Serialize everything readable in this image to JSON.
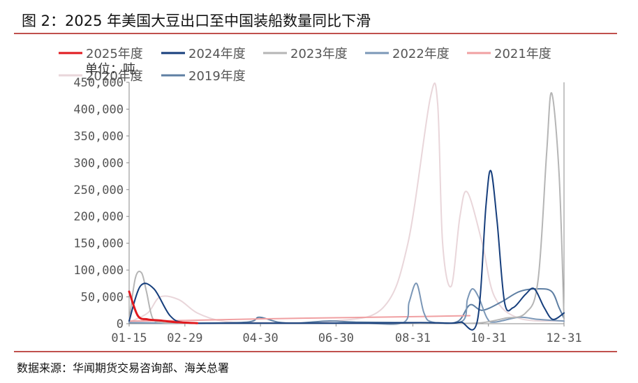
{
  "figure": {
    "title": "图 2：2025 年美国大豆出口至中国装船数量同比下滑",
    "source": "数据来源：华闻期货交易咨询部、海关总署"
  },
  "chart_data": {
    "type": "line",
    "unit_label": "单位：吨",
    "x_tick_labels": [
      "01-15",
      "02-29",
      "04-30",
      "06-30",
      "08-31",
      "10-31",
      "12-31"
    ],
    "x_ticks_day_of_year": [
      15,
      60,
      121,
      182,
      244,
      305,
      366
    ],
    "y_tick_labels": [
      "0",
      "50,000",
      "100,000",
      "150,000",
      "200,000",
      "250,000",
      "300,000",
      "350,000",
      "400,000",
      "450,000"
    ],
    "ylim": [
      0,
      450000
    ],
    "xlim_day_of_year": [
      15,
      366
    ],
    "grid": false,
    "legend_position": "top-left",
    "series": [
      {
        "name": "2025年度",
        "color": "#e0191e",
        "width": 3,
        "x": [
          15,
          22,
          30,
          40,
          52,
          70
        ],
        "y": [
          60000,
          15000,
          8000,
          6000,
          3000,
          1000
        ]
      },
      {
        "name": "2024年度",
        "color": "#163e7c",
        "width": 2,
        "x": [
          15,
          24,
          35,
          48,
          60,
          90,
          150,
          220,
          250,
          275,
          283,
          296,
          303,
          307,
          312,
          318,
          325,
          335,
          342,
          350,
          357,
          366
        ],
        "y": [
          5000,
          70000,
          65000,
          15000,
          2000,
          1000,
          1000,
          1000,
          2000,
          1000,
          3000,
          5000,
          220000,
          285000,
          190000,
          40000,
          30000,
          55000,
          65000,
          30000,
          8000,
          20000
        ]
      },
      {
        "name": "2023年度",
        "color": "#b5b5b5",
        "width": 2,
        "x": [
          15,
          20,
          25,
          29,
          34,
          42,
          55,
          80,
          130,
          200,
          280,
          300,
          318,
          335,
          345,
          352,
          356,
          362,
          366
        ],
        "y": [
          5000,
          85000,
          95000,
          60000,
          10000,
          2000,
          1000,
          500,
          500,
          500,
          500,
          2000,
          10000,
          20000,
          80000,
          320000,
          430000,
          280000,
          10000
        ]
      },
      {
        "name": "2022年度",
        "color": "#7b97b7",
        "width": 2,
        "x": [
          15,
          60,
          120,
          200,
          236,
          241,
          247,
          253,
          260,
          284,
          288,
          292,
          297,
          304,
          310,
          330,
          345,
          366
        ],
        "y": [
          2000,
          1000,
          1000,
          1000,
          2000,
          40000,
          75000,
          20000,
          3000,
          5000,
          45000,
          65000,
          50000,
          10000,
          3000,
          12000,
          8000,
          5000
        ]
      },
      {
        "name": "2021年度",
        "color": "#f0a0a2",
        "width": 2,
        "x": [
          15,
          60,
          120,
          180,
          240,
          290
        ],
        "y": [
          5000,
          6000,
          9000,
          11000,
          13000,
          15000
        ]
      },
      {
        "name": "2020年度",
        "color": "#e9d6da",
        "width": 2,
        "x": [
          15,
          30,
          40,
          55,
          70,
          90,
          120,
          180,
          220,
          240,
          258,
          264,
          268,
          275,
          282,
          288,
          300,
          310,
          330,
          366
        ],
        "y": [
          3000,
          20000,
          50000,
          45000,
          20000,
          5000,
          2000,
          5000,
          30000,
          150000,
          420000,
          410000,
          150000,
          70000,
          200000,
          245000,
          150000,
          50000,
          10000,
          5000
        ]
      },
      {
        "name": "2019年度",
        "color": "#5e7fa3",
        "width": 2,
        "x": [
          15,
          60,
          110,
          120,
          135,
          150,
          175,
          200,
          260,
          280,
          290,
          300,
          315,
          330,
          345,
          356,
          362,
          366
        ],
        "y": [
          2000,
          1000,
          3000,
          12000,
          3000,
          1000,
          5000,
          3000,
          2000,
          4000,
          35000,
          25000,
          40000,
          60000,
          65000,
          60000,
          30000,
          10000
        ]
      }
    ]
  }
}
